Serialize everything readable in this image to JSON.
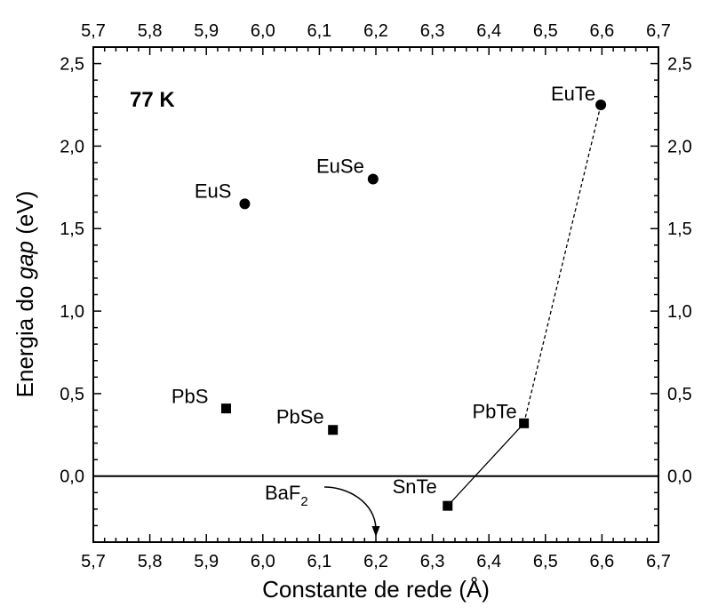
{
  "chart_data": {
    "type": "scatter",
    "xlabel": "Constante de rede (Å)",
    "ylabel_parts": [
      "Energia do ",
      "gap",
      " (eV)"
    ],
    "xlim": [
      5.7,
      6.7
    ],
    "ylim": [
      -0.4,
      2.6
    ],
    "x_ticks": [
      5.7,
      5.8,
      5.9,
      6.0,
      6.1,
      6.2,
      6.3,
      6.4,
      6.5,
      6.6,
      6.7
    ],
    "x_tick_labels": [
      "5,7",
      "5,8",
      "5,9",
      "6,0",
      "6,1",
      "6,2",
      "6,3",
      "6,4",
      "6,5",
      "6,6",
      "6,7"
    ],
    "y_ticks": [
      0.0,
      0.5,
      1.0,
      1.5,
      2.0,
      2.5
    ],
    "y_tick_labels": [
      "0,0",
      "0,5",
      "1,0",
      "1,5",
      "2,0",
      "2,5"
    ],
    "annotation": "77 K",
    "zero_line": 0.0,
    "series": [
      {
        "marker": "circle",
        "points": [
          {
            "label": "EuS",
            "x": 5.968,
            "y": 1.65
          },
          {
            "label": "EuSe",
            "x": 6.195,
            "y": 1.8
          },
          {
            "label": "EuTe",
            "x": 6.598,
            "y": 2.25
          }
        ]
      },
      {
        "marker": "square",
        "points": [
          {
            "label": "PbS",
            "x": 5.935,
            "y": 0.41
          },
          {
            "label": "PbSe",
            "x": 6.124,
            "y": 0.28
          },
          {
            "label": "PbTe",
            "x": 6.462,
            "y": 0.32
          },
          {
            "label": "SnTe",
            "x": 6.327,
            "y": -0.18
          }
        ]
      }
    ],
    "connectors": [
      {
        "from": "SnTe",
        "to": "PbTe",
        "style": "solid"
      },
      {
        "from": "PbTe",
        "to": "EuTe",
        "style": "dashed"
      }
    ],
    "baf2": {
      "label_main": "BaF",
      "label_sub": "2",
      "x": 6.2
    }
  }
}
